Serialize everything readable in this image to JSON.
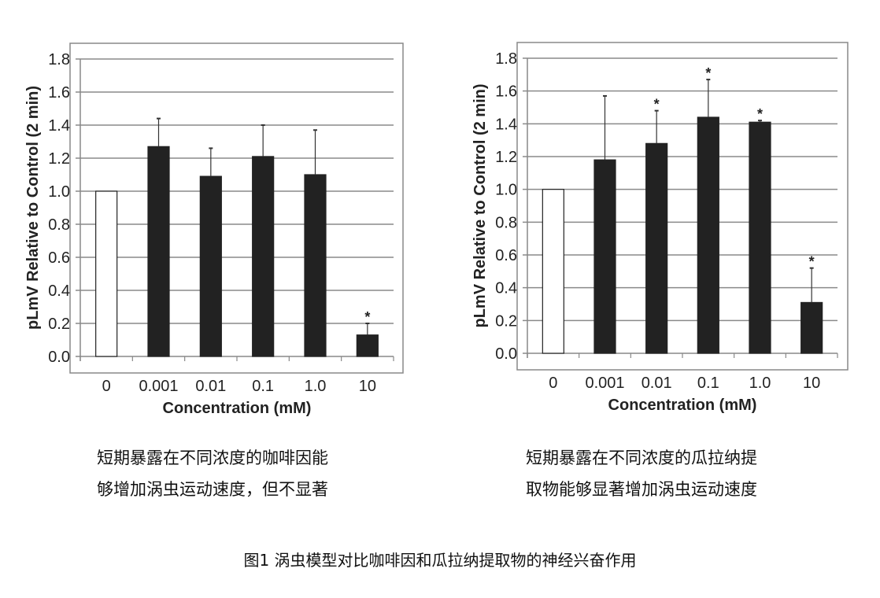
{
  "chart_data": [
    {
      "type": "bar",
      "ylabel": "pLmV Relative to Control (2 min)",
      "xlabel": "Concentration (mM)",
      "categories": [
        "0",
        "0.001",
        "0.01",
        "0.1",
        "1.0",
        "10"
      ],
      "values": [
        1.0,
        1.27,
        1.09,
        1.21,
        1.1,
        0.13
      ],
      "errors": [
        0,
        0.17,
        0.17,
        0.19,
        0.27,
        0.07
      ],
      "significant": [
        false,
        false,
        false,
        false,
        false,
        true
      ],
      "significance_marker": "*",
      "bar_colors": [
        "#ffffff",
        "#222222",
        "#222222",
        "#222222",
        "#222222",
        "#222222"
      ],
      "ylim": [
        0,
        1.8
      ],
      "yticks": [
        "0.0",
        "0.2",
        "0.4",
        "0.6",
        "0.8",
        "1.0",
        "1.2",
        "1.4",
        "1.6",
        "1.8"
      ],
      "grid": true,
      "caption": [
        "短期暴露在不同浓度的咖啡因能",
        "够增加涡虫运动速度，但不显著"
      ]
    },
    {
      "type": "bar",
      "ylabel": "pLmV Relative to Control (2 min)",
      "xlabel": "Concentration (mM)",
      "categories": [
        "0",
        "0.001",
        "0.01",
        "0.1",
        "1.0",
        "10"
      ],
      "values": [
        1.0,
        1.18,
        1.28,
        1.44,
        1.41,
        0.31
      ],
      "errors": [
        0,
        0.39,
        0.2,
        0.23,
        0.01,
        0.21
      ],
      "significant": [
        false,
        false,
        true,
        true,
        true,
        true
      ],
      "significance_marker": "*",
      "bar_colors": [
        "#ffffff",
        "#222222",
        "#222222",
        "#222222",
        "#222222",
        "#222222"
      ],
      "ylim": [
        0,
        1.8
      ],
      "yticks": [
        "0.0",
        "0.2",
        "0.4",
        "0.6",
        "0.8",
        "1.0",
        "1.2",
        "1.4",
        "1.6",
        "1.8"
      ],
      "grid": true,
      "caption": [
        "短期暴露在不同浓度的瓜拉纳提",
        "取物能够显著增加涡虫运动速度"
      ]
    }
  ],
  "figure_caption": "图1 涡虫模型对比咖啡因和瓜拉纳提取物的神经兴奋作用"
}
